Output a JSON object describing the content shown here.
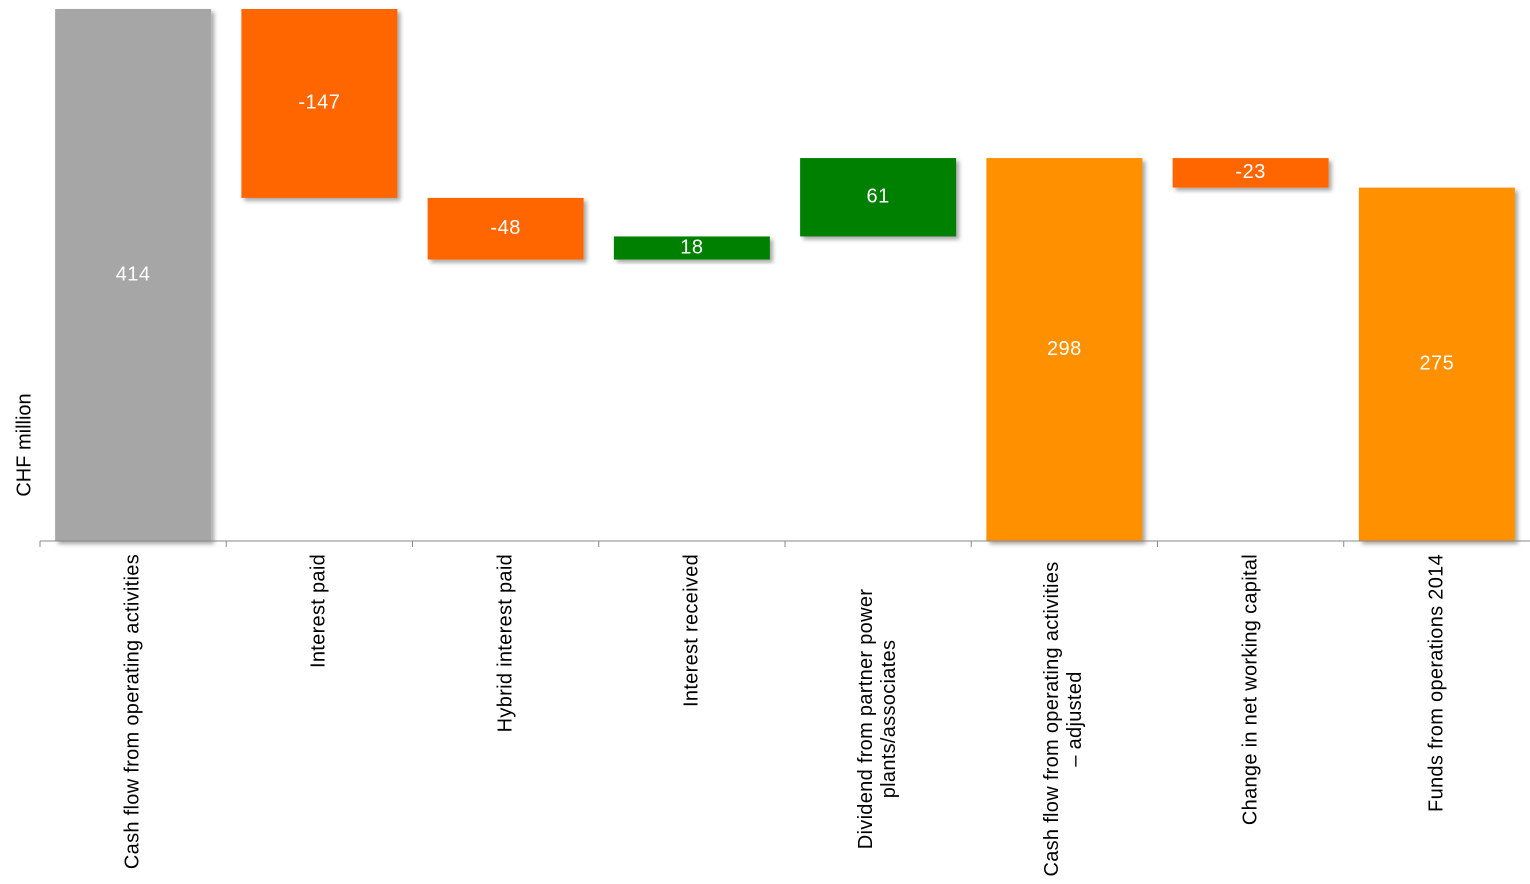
{
  "chart_data": {
    "type": "waterfall",
    "y_label": "CHF million",
    "categories": [
      "Cash flow from operating activities",
      "Interest paid",
      "Hybrid interest paid",
      "Interest received",
      "Dividend from partner power plants/associates",
      "Cash flow from operating activities – adjusted",
      "Change in net working capital",
      "Funds from operations 2014"
    ],
    "values": [
      414,
      -147,
      -48,
      18,
      61,
      298,
      -23,
      275
    ],
    "is_total": [
      true,
      false,
      false,
      false,
      false,
      true,
      false,
      true
    ],
    "colors": [
      "#a6a6a6",
      "#ff6600",
      "#ff6600",
      "#008000",
      "#008000",
      "#ff9100",
      "#ff6600",
      "#ff9100"
    ],
    "ylim": [
      0,
      414
    ]
  }
}
